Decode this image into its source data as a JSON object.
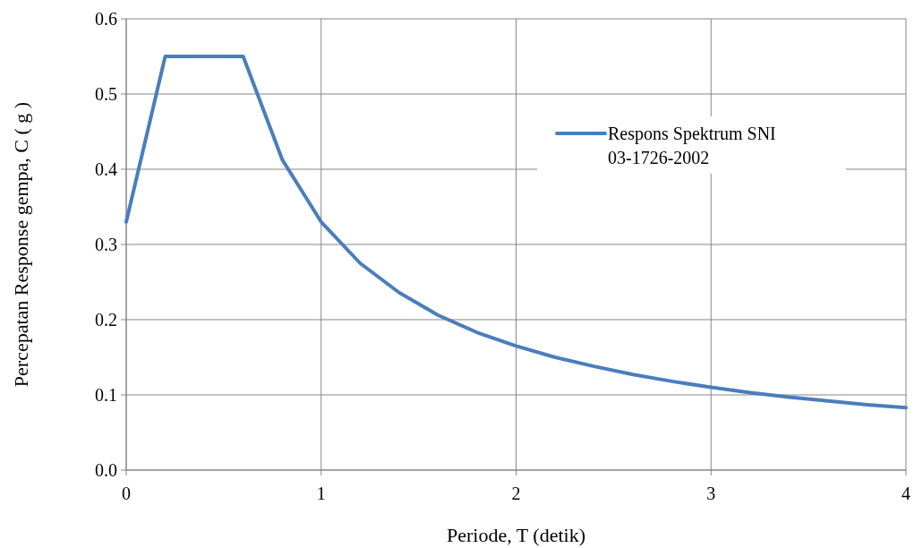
{
  "chart_data": {
    "type": "line",
    "xlabel": "Periode, T (detik)",
    "ylabel": "Percepatan Response gempa, C ( g )",
    "x": [
      0,
      0.2,
      0.4,
      0.6,
      0.8,
      1.0,
      1.2,
      1.4,
      1.6,
      1.8,
      2.0,
      2.2,
      2.4,
      2.6,
      2.8,
      3.0,
      3.2,
      3.4,
      3.6,
      3.8,
      4.0
    ],
    "series": [
      {
        "name": "Respons Spektrum SNI 03-1726-2002",
        "color": "#4a7ebb",
        "values": [
          0.33,
          0.55,
          0.55,
          0.55,
          0.413,
          0.33,
          0.275,
          0.236,
          0.206,
          0.183,
          0.165,
          0.15,
          0.138,
          0.127,
          0.118,
          0.11,
          0.103,
          0.097,
          0.092,
          0.087,
          0.083
        ]
      }
    ],
    "xlim": [
      0,
      4
    ],
    "xticks": [
      0,
      1,
      2,
      3,
      4
    ],
    "ylim": [
      0,
      0.6
    ],
    "yticks": [
      {
        "value": 0,
        "label": "0.0"
      },
      0.1,
      0.2,
      0.3,
      0.4,
      0.5,
      0.6
    ],
    "grid": true,
    "legend": "right",
    "marker": "none",
    "line_style": "solid"
  }
}
